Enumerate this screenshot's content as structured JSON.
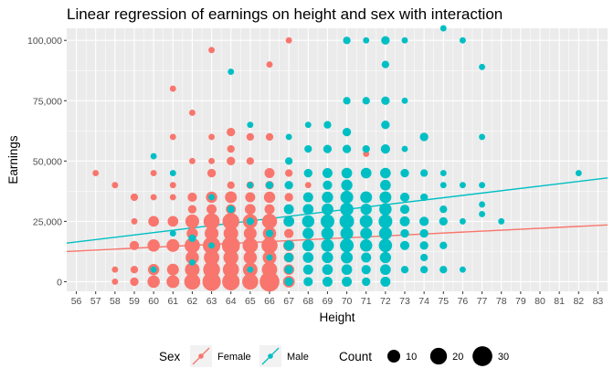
{
  "chart_data": {
    "type": "scatter",
    "title": "Linear regression of earnings on height and sex with interaction",
    "xlabel": "Height",
    "ylabel": "Earnings",
    "xlim": [
      55.5,
      83.5
    ],
    "ylim": [
      -4000,
      105000
    ],
    "x_ticks": [
      56,
      57,
      58,
      59,
      60,
      61,
      62,
      63,
      64,
      65,
      66,
      67,
      68,
      69,
      70,
      71,
      72,
      73,
      74,
      75,
      76,
      77,
      78,
      79,
      80,
      81,
      82,
      83
    ],
    "y_ticks": [
      0,
      25000,
      50000,
      75000,
      100000
    ],
    "y_tick_labels": [
      "0",
      "25,000",
      "50,000",
      "75,000",
      "100,000"
    ],
    "colors": {
      "Female": "#F8766D",
      "Male": "#00BFC4",
      "panel": "#EBEBEB",
      "grid": "#FFFFFF"
    },
    "series": [
      {
        "name": "Female",
        "points": [
          [
            57,
            45000,
            1
          ],
          [
            58,
            40000,
            1
          ],
          [
            58,
            5000,
            1
          ],
          [
            58,
            0,
            1
          ],
          [
            59,
            35000,
            2
          ],
          [
            59,
            25000,
            1
          ],
          [
            59,
            15000,
            4
          ],
          [
            59,
            5000,
            2
          ],
          [
            59,
            0,
            3
          ],
          [
            60,
            45000,
            1
          ],
          [
            60,
            35000,
            1
          ],
          [
            60,
            25000,
            6
          ],
          [
            60,
            15000,
            9
          ],
          [
            60,
            5000,
            7
          ],
          [
            60,
            0,
            9
          ],
          [
            61,
            80000,
            1
          ],
          [
            61,
            60000,
            1
          ],
          [
            61,
            40000,
            1
          ],
          [
            61,
            35000,
            1
          ],
          [
            61,
            25000,
            6
          ],
          [
            61,
            15000,
            10
          ],
          [
            61,
            5000,
            8
          ],
          [
            61,
            0,
            10
          ],
          [
            62,
            70000,
            1
          ],
          [
            62,
            50000,
            1
          ],
          [
            62,
            35000,
            4
          ],
          [
            62,
            30000,
            3
          ],
          [
            62,
            25000,
            12
          ],
          [
            62,
            20000,
            7
          ],
          [
            62,
            15000,
            16
          ],
          [
            62,
            10000,
            11
          ],
          [
            62,
            5000,
            14
          ],
          [
            62,
            0,
            18
          ],
          [
            63,
            96000,
            1
          ],
          [
            63,
            60000,
            1
          ],
          [
            63,
            50000,
            1
          ],
          [
            63,
            45000,
            3
          ],
          [
            63,
            35000,
            7
          ],
          [
            63,
            30000,
            5
          ],
          [
            63,
            25000,
            18
          ],
          [
            63,
            20000,
            12
          ],
          [
            63,
            15000,
            22
          ],
          [
            63,
            10000,
            16
          ],
          [
            63,
            5000,
            20
          ],
          [
            63,
            0,
            25
          ],
          [
            64,
            62000,
            3
          ],
          [
            64,
            55000,
            2
          ],
          [
            64,
            50000,
            3
          ],
          [
            64,
            40000,
            2
          ],
          [
            64,
            35000,
            8
          ],
          [
            64,
            30000,
            5
          ],
          [
            64,
            25000,
            20
          ],
          [
            64,
            20000,
            14
          ],
          [
            64,
            15000,
            24
          ],
          [
            64,
            10000,
            15
          ],
          [
            64,
            5000,
            18
          ],
          [
            64,
            0,
            22
          ],
          [
            65,
            60000,
            2
          ],
          [
            65,
            50000,
            2
          ],
          [
            65,
            40000,
            2
          ],
          [
            65,
            35000,
            5
          ],
          [
            65,
            30000,
            6
          ],
          [
            65,
            25000,
            14
          ],
          [
            65,
            20000,
            10
          ],
          [
            65,
            15000,
            16
          ],
          [
            65,
            10000,
            11
          ],
          [
            65,
            5000,
            14
          ],
          [
            65,
            0,
            18
          ],
          [
            66,
            90000,
            1
          ],
          [
            66,
            60000,
            2
          ],
          [
            66,
            45000,
            5
          ],
          [
            66,
            40000,
            3
          ],
          [
            66,
            35000,
            7
          ],
          [
            66,
            30000,
            5
          ],
          [
            66,
            25000,
            15
          ],
          [
            66,
            20000,
            11
          ],
          [
            66,
            15000,
            18
          ],
          [
            66,
            10000,
            12
          ],
          [
            66,
            5000,
            16
          ],
          [
            66,
            0,
            30
          ],
          [
            67,
            100000,
            1
          ],
          [
            67,
            45000,
            2
          ],
          [
            67,
            35000,
            3
          ],
          [
            67,
            25000,
            6
          ],
          [
            67,
            20000,
            4
          ],
          [
            67,
            15000,
            7
          ],
          [
            67,
            10000,
            5
          ],
          [
            67,
            5000,
            6
          ],
          [
            67,
            0,
            8
          ],
          [
            68,
            40000,
            1
          ],
          [
            68,
            25000,
            3
          ],
          [
            68,
            15000,
            3
          ],
          [
            68,
            5000,
            2
          ],
          [
            68,
            0,
            3
          ],
          [
            69,
            35000,
            1
          ],
          [
            69,
            25000,
            1
          ],
          [
            69,
            15000,
            1
          ],
          [
            69,
            0,
            1
          ],
          [
            70,
            30000,
            1
          ],
          [
            70,
            20000,
            1
          ],
          [
            71,
            53000,
            1
          ],
          [
            71,
            25000,
            1
          ],
          [
            72,
            25000,
            1
          ],
          [
            72,
            0,
            1
          ],
          [
            73,
            15000,
            1
          ]
        ]
      },
      {
        "name": "Male",
        "points": [
          [
            60,
            52000,
            1
          ],
          [
            60,
            5000,
            1
          ],
          [
            61,
            45000,
            1
          ],
          [
            61,
            20000,
            1
          ],
          [
            62,
            18000,
            2
          ],
          [
            62,
            8000,
            1
          ],
          [
            63,
            35000,
            1
          ],
          [
            63,
            15000,
            1
          ],
          [
            64,
            87000,
            1
          ],
          [
            64,
            30000,
            2
          ],
          [
            65,
            65000,
            1
          ],
          [
            65,
            40000,
            1
          ],
          [
            65,
            25000,
            2
          ],
          [
            65,
            5000,
            1
          ],
          [
            66,
            40000,
            2
          ],
          [
            66,
            20000,
            2
          ],
          [
            66,
            10000,
            1
          ],
          [
            67,
            60000,
            1
          ],
          [
            67,
            50000,
            2
          ],
          [
            67,
            40000,
            3
          ],
          [
            67,
            30000,
            5
          ],
          [
            67,
            25000,
            6
          ],
          [
            67,
            15000,
            5
          ],
          [
            67,
            10000,
            4
          ],
          [
            67,
            5000,
            3
          ],
          [
            67,
            0,
            3
          ],
          [
            68,
            65000,
            1
          ],
          [
            68,
            55000,
            2
          ],
          [
            68,
            45000,
            3
          ],
          [
            68,
            35000,
            5
          ],
          [
            68,
            30000,
            6
          ],
          [
            68,
            25000,
            9
          ],
          [
            68,
            20000,
            7
          ],
          [
            68,
            15000,
            8
          ],
          [
            68,
            10000,
            6
          ],
          [
            68,
            5000,
            5
          ],
          [
            68,
            0,
            4
          ],
          [
            69,
            65000,
            2
          ],
          [
            69,
            55000,
            3
          ],
          [
            69,
            45000,
            5
          ],
          [
            69,
            40000,
            4
          ],
          [
            69,
            35000,
            7
          ],
          [
            69,
            30000,
            8
          ],
          [
            69,
            25000,
            12
          ],
          [
            69,
            20000,
            9
          ],
          [
            69,
            15000,
            10
          ],
          [
            69,
            10000,
            7
          ],
          [
            69,
            5000,
            6
          ],
          [
            69,
            0,
            5
          ],
          [
            70,
            100000,
            2
          ],
          [
            70,
            75000,
            2
          ],
          [
            70,
            62000,
            3
          ],
          [
            70,
            55000,
            3
          ],
          [
            70,
            45000,
            6
          ],
          [
            70,
            40000,
            7
          ],
          [
            70,
            35000,
            10
          ],
          [
            70,
            30000,
            11
          ],
          [
            70,
            25000,
            14
          ],
          [
            70,
            20000,
            10
          ],
          [
            70,
            15000,
            12
          ],
          [
            70,
            10000,
            8
          ],
          [
            70,
            5000,
            6
          ],
          [
            70,
            0,
            5
          ],
          [
            71,
            100000,
            1
          ],
          [
            71,
            75000,
            2
          ],
          [
            71,
            55000,
            2
          ],
          [
            71,
            45000,
            6
          ],
          [
            71,
            35000,
            8
          ],
          [
            71,
            30000,
            7
          ],
          [
            71,
            25000,
            10
          ],
          [
            71,
            20000,
            8
          ],
          [
            71,
            15000,
            9
          ],
          [
            71,
            10000,
            5
          ],
          [
            71,
            5000,
            4
          ],
          [
            71,
            0,
            3
          ],
          [
            72,
            100000,
            3
          ],
          [
            72,
            90000,
            2
          ],
          [
            72,
            75000,
            3
          ],
          [
            72,
            65000,
            3
          ],
          [
            72,
            55000,
            4
          ],
          [
            72,
            45000,
            6
          ],
          [
            72,
            40000,
            6
          ],
          [
            72,
            35000,
            8
          ],
          [
            72,
            30000,
            9
          ],
          [
            72,
            25000,
            12
          ],
          [
            72,
            20000,
            10
          ],
          [
            72,
            15000,
            11
          ],
          [
            72,
            10000,
            7
          ],
          [
            72,
            5000,
            6
          ],
          [
            72,
            0,
            5
          ],
          [
            73,
            100000,
            1
          ],
          [
            73,
            75000,
            1
          ],
          [
            73,
            55000,
            1
          ],
          [
            73,
            45000,
            3
          ],
          [
            73,
            35000,
            4
          ],
          [
            73,
            30000,
            4
          ],
          [
            73,
            25000,
            5
          ],
          [
            73,
            20000,
            3
          ],
          [
            73,
            15000,
            4
          ],
          [
            73,
            5000,
            2
          ],
          [
            74,
            60000,
            3
          ],
          [
            74,
            45000,
            2
          ],
          [
            74,
            35000,
            2
          ],
          [
            74,
            25000,
            4
          ],
          [
            74,
            20000,
            3
          ],
          [
            74,
            15000,
            3
          ],
          [
            74,
            10000,
            2
          ],
          [
            74,
            5000,
            2
          ],
          [
            75,
            105000,
            1
          ],
          [
            75,
            45000,
            1
          ],
          [
            75,
            40000,
            1
          ],
          [
            75,
            30000,
            2
          ],
          [
            75,
            25000,
            3
          ],
          [
            75,
            15000,
            2
          ],
          [
            75,
            5000,
            2
          ],
          [
            76,
            100000,
            1
          ],
          [
            76,
            40000,
            1
          ],
          [
            76,
            25000,
            1
          ],
          [
            76,
            5000,
            1
          ],
          [
            77,
            89000,
            1
          ],
          [
            77,
            60000,
            1
          ],
          [
            77,
            40000,
            1
          ],
          [
            77,
            32000,
            1
          ],
          [
            77,
            28000,
            1
          ],
          [
            78,
            25000,
            1
          ],
          [
            82,
            45000,
            1
          ]
        ]
      }
    ],
    "regression_lines": [
      {
        "name": "Female",
        "x": [
          55.5,
          83.5
        ],
        "y": [
          12500,
          23500
        ]
      },
      {
        "name": "Male",
        "x": [
          55.5,
          83.5
        ],
        "y": [
          16000,
          43000
        ]
      }
    ],
    "legend": {
      "position": "bottom",
      "sex_title": "Sex",
      "sex_items": [
        "Female",
        "Male"
      ],
      "count_title": "Count",
      "count_items": [
        10,
        20,
        30
      ],
      "count_labels": [
        "10",
        "20",
        "30"
      ]
    }
  }
}
